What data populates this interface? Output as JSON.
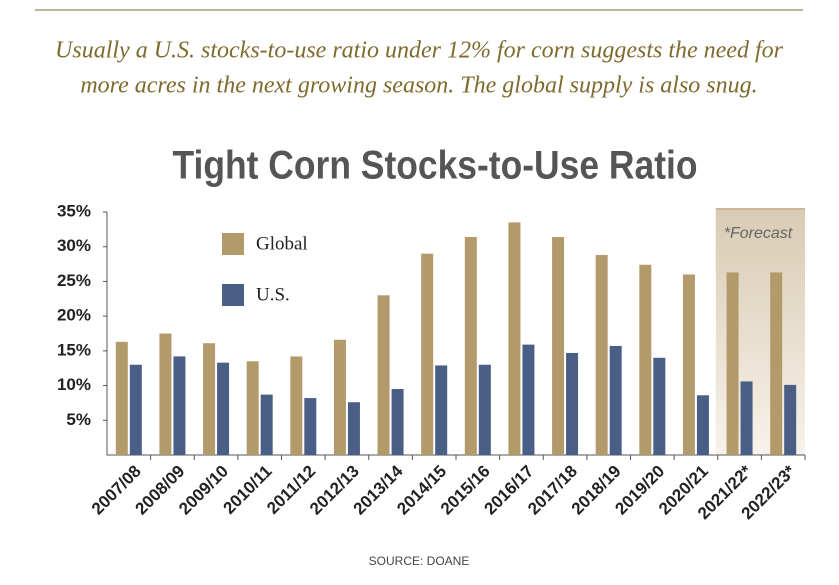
{
  "chart_data": {
    "type": "bar",
    "subtitle": [
      "Usually a U.S. stocks-to-use ratio under 12% for corn suggests the need for",
      "more acres in the next growing season. The global supply is also snug."
    ],
    "title": "Tight Corn Stocks-to-Use Ratio",
    "categories": [
      "2007/08",
      "2008/09",
      "2009/10",
      "2010/11",
      "2011/12",
      "2012/13",
      "2013/14",
      "2014/15",
      "2015/16",
      "2016/17",
      "2017/18",
      "2018/19",
      "2019/20",
      "2020/21",
      "2021/22*",
      "2022/23*"
    ],
    "series": [
      {
        "name": "Global",
        "color": "#b39a6b",
        "values": [
          16.3,
          17.5,
          16.1,
          13.5,
          14.2,
          16.6,
          23,
          29,
          31.4,
          33.5,
          31.4,
          28.8,
          27.4,
          26,
          26.3,
          26.3
        ]
      },
      {
        "name": "U.S.",
        "color": "#4a5f86",
        "values": [
          13,
          14.2,
          13.3,
          8.7,
          8.2,
          7.6,
          9.5,
          12.9,
          13,
          15.9,
          14.7,
          15.7,
          14,
          8.6,
          10.6,
          10.1
        ]
      }
    ],
    "ylim": [
      0,
      35
    ],
    "yticks": [
      {
        "value": 5,
        "label": "5%"
      },
      {
        "value": 10,
        "label": "10%"
      },
      {
        "value": 15,
        "label": "15%"
      },
      {
        "value": 20,
        "label": "20%"
      },
      {
        "value": 25,
        "label": "25%"
      },
      {
        "value": 30,
        "label": "30%"
      },
      {
        "value": 35,
        "label": "35%"
      }
    ],
    "legend": "upper left",
    "annotation": "*Forecast",
    "source": "SOURCE: DOANE"
  }
}
